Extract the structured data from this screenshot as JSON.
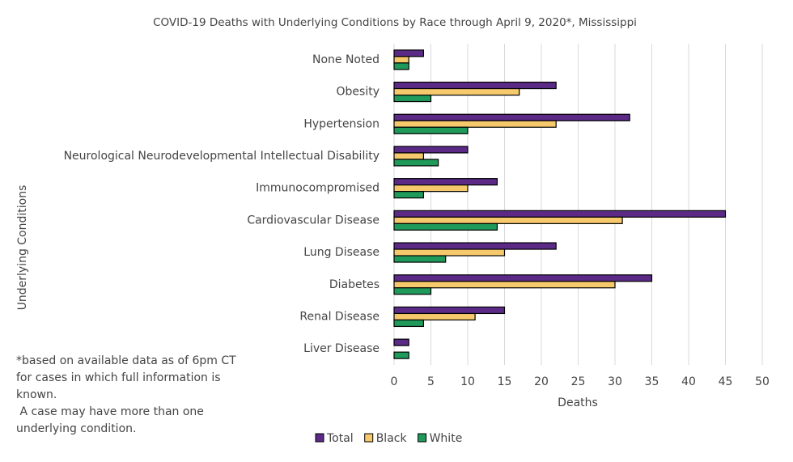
{
  "chart_data": {
    "type": "hbar",
    "title": "COVID-19 Deaths with Underlying Conditions by Race through April 9, 2020*, Mississippi",
    "x_label": "Deaths",
    "y_label": "Underlying Conditions",
    "note": [
      "*based on available data as of 6pm CT",
      "for cases in which full information is",
      "known.",
      " A case may have more than one",
      "underlying condition."
    ],
    "categories": [
      "None Noted",
      "Obesity",
      "Hypertension",
      "Neurological Neurodevelopmental Intellectual Disability",
      "Immunocompromised",
      "Cardiovascular Disease",
      "Lung Disease",
      "Diabetes",
      "Renal Disease",
      "Liver Disease"
    ],
    "series": [
      {
        "name": "Total",
        "color": "#5b2a86",
        "values": [
          4,
          22,
          32,
          10,
          14,
          45,
          22,
          35,
          15,
          2
        ]
      },
      {
        "name": "Black",
        "color": "#f6c96c",
        "values": [
          2,
          17,
          22,
          4,
          10,
          31,
          15,
          30,
          11,
          0
        ]
      },
      {
        "name": "White",
        "color": "#1f9a5b",
        "values": [
          2,
          5,
          10,
          6,
          4,
          14,
          7,
          5,
          4,
          2
        ]
      }
    ],
    "xlim": [
      0,
      50
    ],
    "xticks": [
      0,
      5,
      10,
      15,
      20,
      25,
      30,
      35,
      40,
      45,
      50
    ],
    "grid": true,
    "legend": "bottom"
  }
}
